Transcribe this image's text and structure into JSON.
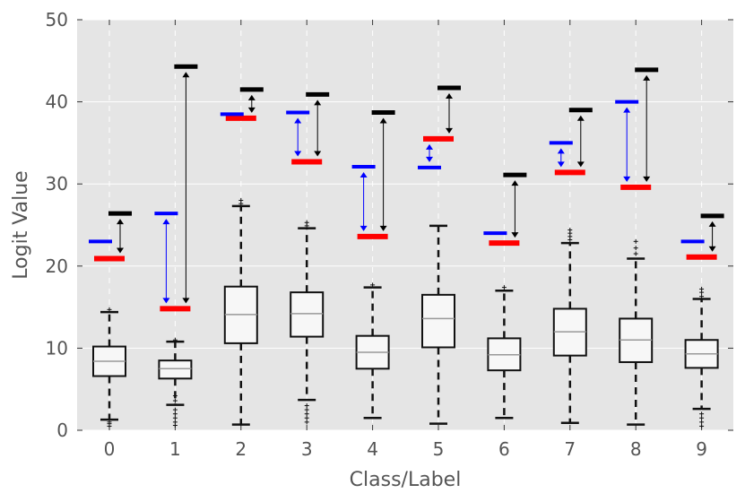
{
  "chart_data": {
    "type": "box",
    "xlabel": "Class/Label",
    "ylabel": "Logit Value",
    "ylim": [
      0,
      50
    ],
    "yticks": [
      0,
      10,
      20,
      30,
      40,
      50
    ],
    "categories": [
      "0",
      "1",
      "2",
      "3",
      "4",
      "5",
      "6",
      "7",
      "8",
      "9"
    ],
    "grid": true,
    "boxes": [
      {
        "class": "0",
        "whisker_low": 1.3,
        "q1": 6.6,
        "median": 8.4,
        "q3": 10.2,
        "whisker_high": 14.4
      },
      {
        "class": "1",
        "whisker_low": 3.1,
        "q1": 6.3,
        "median": 7.5,
        "q3": 8.5,
        "whisker_high": 10.8
      },
      {
        "class": "2",
        "whisker_low": 0.7,
        "q1": 10.6,
        "median": 14.1,
        "q3": 17.5,
        "whisker_high": 27.3
      },
      {
        "class": "3",
        "whisker_low": 3.7,
        "q1": 11.4,
        "median": 14.2,
        "q3": 16.8,
        "whisker_high": 24.6
      },
      {
        "class": "4",
        "whisker_low": 1.5,
        "q1": 7.5,
        "median": 9.5,
        "q3": 11.5,
        "whisker_high": 17.4
      },
      {
        "class": "5",
        "whisker_low": 0.8,
        "q1": 10.1,
        "median": 13.6,
        "q3": 16.5,
        "whisker_high": 24.9
      },
      {
        "class": "6",
        "whisker_low": 1.5,
        "q1": 7.3,
        "median": 9.2,
        "q3": 11.2,
        "whisker_high": 17.0
      },
      {
        "class": "7",
        "whisker_low": 0.9,
        "q1": 9.1,
        "median": 12.0,
        "q3": 14.8,
        "whisker_high": 22.8
      },
      {
        "class": "8",
        "whisker_low": 0.7,
        "q1": 8.3,
        "median": 11.0,
        "q3": 13.6,
        "whisker_high": 20.9
      },
      {
        "class": "9",
        "whisker_low": 2.6,
        "q1": 7.6,
        "median": 9.3,
        "q3": 11.0,
        "whisker_high": 16.0
      }
    ],
    "outliers": [
      {
        "class": "0",
        "values": [
          0.5,
          0.8,
          1.0,
          14.7
        ]
      },
      {
        "class": "1",
        "values": [
          0.6,
          1.0,
          1.5,
          2.0,
          2.5,
          3.6,
          4.2,
          11.0
        ]
      },
      {
        "class": "2",
        "values": [
          27.6,
          28.0
        ]
      },
      {
        "class": "3",
        "values": [
          1.0,
          1.5,
          2.0,
          2.5,
          3.0,
          24.9,
          25.3
        ]
      },
      {
        "class": "4",
        "values": [
          17.7
        ]
      },
      {
        "class": "6",
        "values": [
          17.4
        ]
      },
      {
        "class": "7",
        "values": [
          23.2,
          23.6,
          24.0,
          24.4
        ]
      },
      {
        "class": "8",
        "values": [
          21.5,
          22.2,
          23.0
        ]
      },
      {
        "class": "9",
        "values": [
          0.5,
          1.0,
          1.5,
          2.0,
          16.3,
          16.8,
          17.2
        ]
      }
    ],
    "red_markers": [
      20.9,
      14.8,
      38.0,
      32.7,
      23.6,
      35.5,
      22.8,
      31.4,
      29.6,
      21.1
    ],
    "blue_markers": [
      23.0,
      26.4,
      38.5,
      38.7,
      32.1,
      32.0,
      24.0,
      35.0,
      40.0,
      23.0
    ],
    "black_markers": [
      26.4,
      44.3,
      41.5,
      40.9,
      38.7,
      41.7,
      31.1,
      39.0,
      43.9,
      26.1
    ],
    "colors": {
      "plot_bg": "#e5e5e5",
      "grid": "#ffffff",
      "box_fill": "#f7f7f7",
      "box_edge": "#111111",
      "median": "#999999",
      "red": "#ff0000",
      "blue": "#0000ff",
      "black": "#000000"
    }
  }
}
